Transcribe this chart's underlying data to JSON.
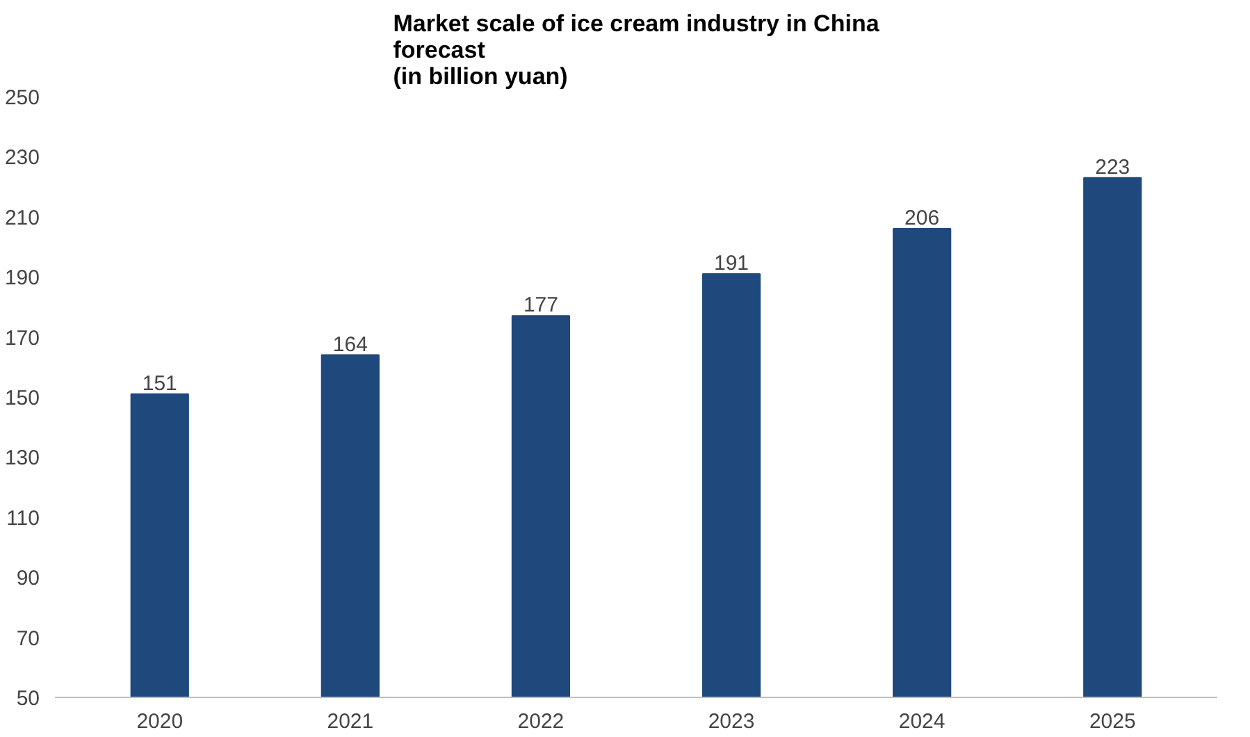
{
  "chart_data": {
    "type": "bar",
    "title": "Market scale of ice cream industry in China forecast",
    "subtitle": "(in billion yuan)",
    "categories": [
      "2020",
      "2021",
      "2022",
      "2023",
      "2024",
      "2025"
    ],
    "values": [
      151,
      164,
      177,
      191,
      206,
      223
    ],
    "color": "#1f497d",
    "ylim": [
      50,
      250
    ],
    "yticks": [
      50,
      70,
      90,
      110,
      130,
      150,
      170,
      190,
      210,
      230,
      250
    ],
    "data_labels": true,
    "grid": false
  }
}
